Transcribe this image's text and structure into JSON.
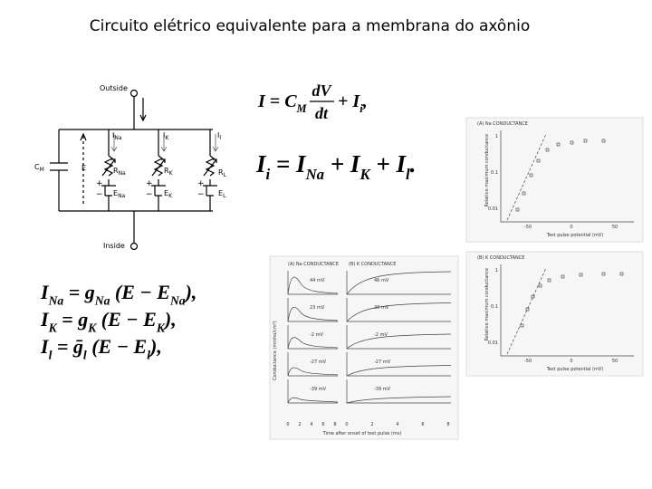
{
  "title": "Circuito elétrico equivalente para a membrana do axônio",
  "circuit": {
    "outside": "Outside",
    "inside": "Inside",
    "labels": [
      [
        "C",
        "M"
      ],
      [
        "E",
        ""
      ],
      [
        "I",
        "Na"
      ],
      [
        "I",
        "K"
      ],
      [
        "I",
        "l"
      ],
      [
        "R",
        "Na"
      ],
      [
        "R",
        "K"
      ],
      [
        "R",
        "L"
      ],
      [
        "E",
        "Na"
      ],
      [
        "E",
        "K"
      ],
      [
        "E",
        "L"
      ]
    ],
    "plus": "+",
    "minus": "−"
  },
  "equations": {
    "eq1": {
      "left": [
        {
          "t": "I",
          "sub": false
        },
        {
          "t": " = C",
          "sub": false
        },
        {
          "t": "M",
          "sub": true
        }
      ],
      "frac": {
        "num": "dV",
        "den": "dt"
      },
      "right": [
        {
          "t": "+ I",
          "sub": false
        },
        {
          "t": "i",
          "sub": true
        },
        {
          "t": ",",
          "sub": false
        }
      ]
    },
    "eq2": [
      {
        "t": "I",
        "sub": false
      },
      {
        "t": "i",
        "sub": true
      },
      {
        "t": " = I",
        "sub": false
      },
      {
        "t": "Na",
        "sub": true
      },
      {
        "t": " + I",
        "sub": false
      },
      {
        "t": "K",
        "sub": true
      },
      {
        "t": " + I",
        "sub": false
      },
      {
        "t": "l",
        "sub": true
      },
      {
        "t": ".",
        "sub": false
      }
    ],
    "ionic": [
      [
        {
          "t": "I",
          "sub": false
        },
        {
          "t": "Na",
          "sub": true
        },
        {
          "t": " = g",
          "sub": false
        },
        {
          "t": "Na",
          "sub": true
        },
        {
          "t": " (E − E",
          "sub": false
        },
        {
          "t": "Na",
          "sub": true
        },
        {
          "t": "),",
          "sub": false
        }
      ],
      [
        {
          "t": "I",
          "sub": false
        },
        {
          "t": "K",
          "sub": true
        },
        {
          "t": " = g",
          "sub": false
        },
        {
          "t": "K",
          "sub": true
        },
        {
          "t": " (E − E",
          "sub": false
        },
        {
          "t": "K",
          "sub": true
        },
        {
          "t": "),",
          "sub": false
        }
      ],
      [
        {
          "t": "I",
          "sub": false
        },
        {
          "t": "l",
          "sub": true
        },
        {
          "t": " = ḡ",
          "sub": false
        },
        {
          "t": "l",
          "sub": true
        },
        {
          "t": " (E − E",
          "sub": false
        },
        {
          "t": "l",
          "sub": true
        },
        {
          "t": "),",
          "sub": false
        }
      ]
    ]
  },
  "time_figure": {
    "na_title": "(A) Na CONDUCTANCE",
    "k_title": "(B) K CONDUCTANCE",
    "ylabel": "Conductance (mmho/cm²)",
    "xlabel": "Time after onset of test pulse (ms)",
    "xticks": [
      "0",
      "2",
      "4",
      "6",
      "8"
    ],
    "na_labels": [
      "44 mV",
      "23 mV",
      "-2 mV",
      "-27 mV",
      "-39 mV"
    ],
    "k_labels": [
      "46 mV",
      "20 mV",
      "-2 mV",
      "-27 mV",
      "-39 mV"
    ]
  },
  "voltage_figures": [
    {
      "title": "(A) Na CONDUCTANCE",
      "ylabel": "Relative maximum conductance",
      "xlabel": "Test pulse potential (mV)",
      "xticks": [
        "-50",
        "0",
        "50"
      ],
      "yticks": [
        "1",
        "0.1",
        "0.01"
      ]
    },
    {
      "title": "(B) K CONDUCTANCE",
      "ylabel": "Relative maximum conductance",
      "xlabel": "Test pulse potential (mV)",
      "xticks": [
        "-50",
        "0",
        "50"
      ],
      "yticks": [
        "1",
        "0.1",
        "0.01"
      ]
    }
  ]
}
